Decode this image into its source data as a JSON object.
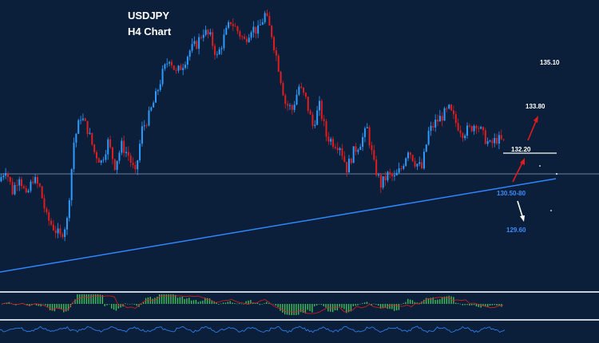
{
  "colors": {
    "background": "#0b1f3a",
    "bull_candle": "#2e9cff",
    "bear_candle": "#e01e1e",
    "trendline": "#2f86ff",
    "level_text_white": "#ffffff",
    "level_text_blue": "#3d8bff",
    "arrow_red": "#e31b1b",
    "arrow_white": "#ffffff",
    "macd_hist": "#3fbf5a",
    "rsi_line": "#2f86ff"
  },
  "chart_data": {
    "type": "candlestick",
    "title": "USDJPY",
    "subtitle": "H4 Chart",
    "ylim": [
      128.2,
      136.1
    ],
    "grid": false,
    "close_path": [
      130.7,
      131.1,
      130.4,
      130.9,
      130.2,
      130.8,
      130.5,
      129.6,
      129.3,
      129.0,
      129.5,
      131.9,
      132.7,
      132.3,
      131.6,
      131.3,
      131.9,
      131.2,
      131.8,
      131.5,
      130.9,
      132.3,
      132.7,
      133.3,
      134.0,
      134.5,
      134.0,
      134.3,
      134.7,
      134.9,
      135.3,
      135.1,
      134.5,
      135.1,
      135.6,
      135.3,
      135.0,
      135.4,
      135.3,
      135.8,
      135.2,
      134.2,
      133.1,
      132.9,
      133.6,
      133.2,
      132.4,
      133.0,
      132.1,
      131.9,
      131.8,
      131.1,
      131.6,
      131.9,
      132.3,
      131.2,
      130.6,
      130.9,
      130.8,
      131.1,
      131.7,
      131.3,
      131.1,
      132.2,
      132.5,
      132.7,
      132.9,
      132.5,
      132.2,
      132.3,
      132.5,
      132.1,
      131.8,
      132.0,
      131.9
    ],
    "current_price": 132.0,
    "levels": {
      "resistance_high": "135.10",
      "target_up": "133.80",
      "resistance": "132.20",
      "support_zone": "130.50-80",
      "target_down": "129.60"
    }
  }
}
